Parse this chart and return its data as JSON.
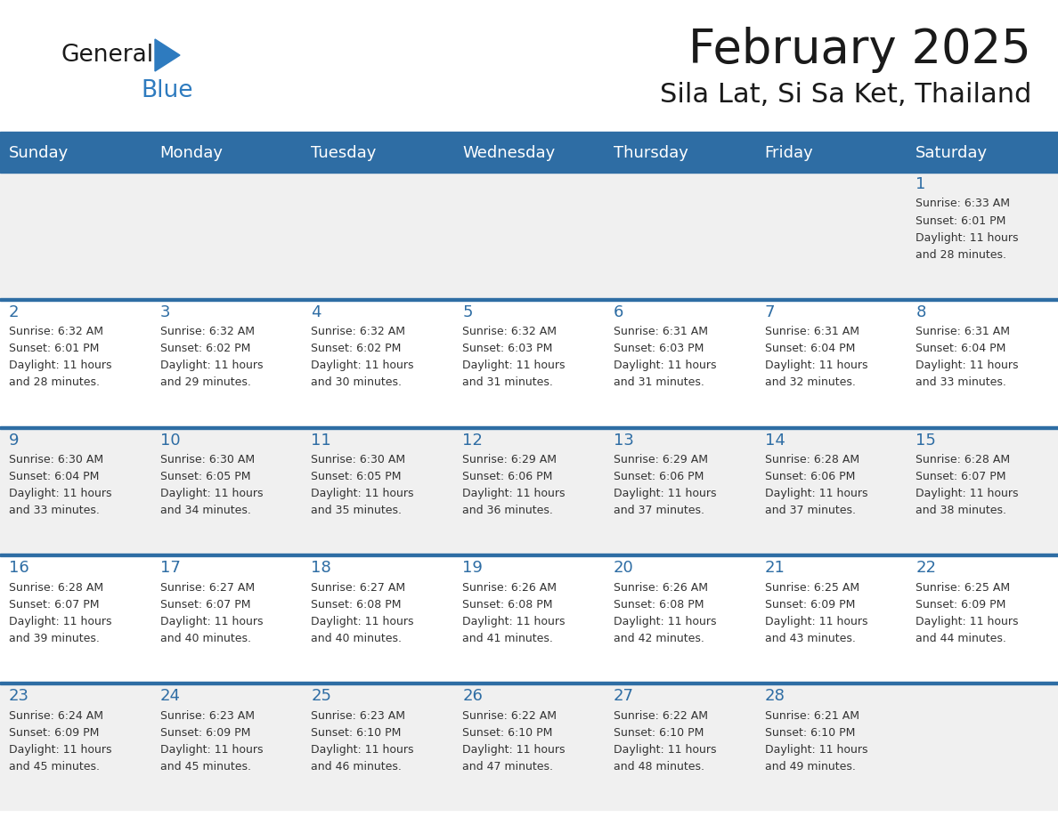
{
  "title": "February 2025",
  "subtitle": "Sila Lat, Si Sa Ket, Thailand",
  "header_color": "#2E6DA4",
  "header_text_color": "#FFFFFF",
  "header_days": [
    "Sunday",
    "Monday",
    "Tuesday",
    "Wednesday",
    "Thursday",
    "Friday",
    "Saturday"
  ],
  "bg_color": "#FFFFFF",
  "alt_row_color": "#F0F0F0",
  "cell_text_color": "#333333",
  "divider_color": "#2E6DA4",
  "logo_general_color": "#1A1A1A",
  "logo_blue_color": "#2E7BBF",
  "num_cols": 7,
  "num_rows": 5,
  "calendar_data": [
    [
      null,
      null,
      null,
      null,
      null,
      null,
      {
        "day": 1,
        "sunrise": "6:33 AM",
        "sunset": "6:01 PM",
        "daylight_hours": 11,
        "daylight_minutes": 28
      }
    ],
    [
      {
        "day": 2,
        "sunrise": "6:32 AM",
        "sunset": "6:01 PM",
        "daylight_hours": 11,
        "daylight_minutes": 28
      },
      {
        "day": 3,
        "sunrise": "6:32 AM",
        "sunset": "6:02 PM",
        "daylight_hours": 11,
        "daylight_minutes": 29
      },
      {
        "day": 4,
        "sunrise": "6:32 AM",
        "sunset": "6:02 PM",
        "daylight_hours": 11,
        "daylight_minutes": 30
      },
      {
        "day": 5,
        "sunrise": "6:32 AM",
        "sunset": "6:03 PM",
        "daylight_hours": 11,
        "daylight_minutes": 31
      },
      {
        "day": 6,
        "sunrise": "6:31 AM",
        "sunset": "6:03 PM",
        "daylight_hours": 11,
        "daylight_minutes": 31
      },
      {
        "day": 7,
        "sunrise": "6:31 AM",
        "sunset": "6:04 PM",
        "daylight_hours": 11,
        "daylight_minutes": 32
      },
      {
        "day": 8,
        "sunrise": "6:31 AM",
        "sunset": "6:04 PM",
        "daylight_hours": 11,
        "daylight_minutes": 33
      }
    ],
    [
      {
        "day": 9,
        "sunrise": "6:30 AM",
        "sunset": "6:04 PM",
        "daylight_hours": 11,
        "daylight_minutes": 33
      },
      {
        "day": 10,
        "sunrise": "6:30 AM",
        "sunset": "6:05 PM",
        "daylight_hours": 11,
        "daylight_minutes": 34
      },
      {
        "day": 11,
        "sunrise": "6:30 AM",
        "sunset": "6:05 PM",
        "daylight_hours": 11,
        "daylight_minutes": 35
      },
      {
        "day": 12,
        "sunrise": "6:29 AM",
        "sunset": "6:06 PM",
        "daylight_hours": 11,
        "daylight_minutes": 36
      },
      {
        "day": 13,
        "sunrise": "6:29 AM",
        "sunset": "6:06 PM",
        "daylight_hours": 11,
        "daylight_minutes": 37
      },
      {
        "day": 14,
        "sunrise": "6:28 AM",
        "sunset": "6:06 PM",
        "daylight_hours": 11,
        "daylight_minutes": 37
      },
      {
        "day": 15,
        "sunrise": "6:28 AM",
        "sunset": "6:07 PM",
        "daylight_hours": 11,
        "daylight_minutes": 38
      }
    ],
    [
      {
        "day": 16,
        "sunrise": "6:28 AM",
        "sunset": "6:07 PM",
        "daylight_hours": 11,
        "daylight_minutes": 39
      },
      {
        "day": 17,
        "sunrise": "6:27 AM",
        "sunset": "6:07 PM",
        "daylight_hours": 11,
        "daylight_minutes": 40
      },
      {
        "day": 18,
        "sunrise": "6:27 AM",
        "sunset": "6:08 PM",
        "daylight_hours": 11,
        "daylight_minutes": 40
      },
      {
        "day": 19,
        "sunrise": "6:26 AM",
        "sunset": "6:08 PM",
        "daylight_hours": 11,
        "daylight_minutes": 41
      },
      {
        "day": 20,
        "sunrise": "6:26 AM",
        "sunset": "6:08 PM",
        "daylight_hours": 11,
        "daylight_minutes": 42
      },
      {
        "day": 21,
        "sunrise": "6:25 AM",
        "sunset": "6:09 PM",
        "daylight_hours": 11,
        "daylight_minutes": 43
      },
      {
        "day": 22,
        "sunrise": "6:25 AM",
        "sunset": "6:09 PM",
        "daylight_hours": 11,
        "daylight_minutes": 44
      }
    ],
    [
      {
        "day": 23,
        "sunrise": "6:24 AM",
        "sunset": "6:09 PM",
        "daylight_hours": 11,
        "daylight_minutes": 45
      },
      {
        "day": 24,
        "sunrise": "6:23 AM",
        "sunset": "6:09 PM",
        "daylight_hours": 11,
        "daylight_minutes": 45
      },
      {
        "day": 25,
        "sunrise": "6:23 AM",
        "sunset": "6:10 PM",
        "daylight_hours": 11,
        "daylight_minutes": 46
      },
      {
        "day": 26,
        "sunrise": "6:22 AM",
        "sunset": "6:10 PM",
        "daylight_hours": 11,
        "daylight_minutes": 47
      },
      {
        "day": 27,
        "sunrise": "6:22 AM",
        "sunset": "6:10 PM",
        "daylight_hours": 11,
        "daylight_minutes": 48
      },
      {
        "day": 28,
        "sunrise": "6:21 AM",
        "sunset": "6:10 PM",
        "daylight_hours": 11,
        "daylight_minutes": 49
      },
      null
    ]
  ]
}
